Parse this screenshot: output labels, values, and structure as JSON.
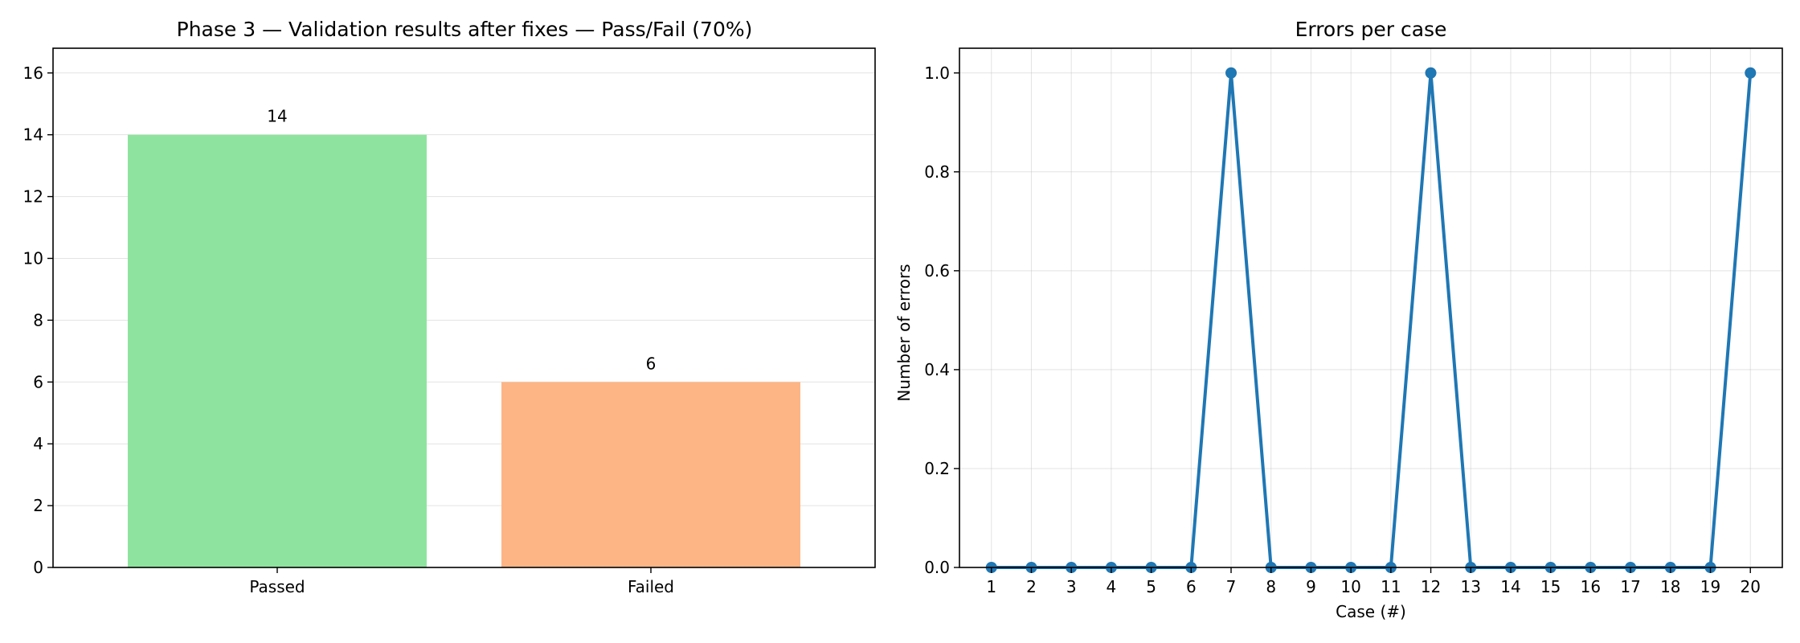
{
  "colors": {
    "passed": "#8ee49e",
    "failed": "#fdb585",
    "line": "#1f77b4",
    "grid": "#b0b0b0"
  },
  "chart_data": [
    {
      "type": "bar",
      "title": "Phase 3 — Validation results after fixes — Pass/Fail (70%)",
      "categories": [
        "Passed",
        "Failed"
      ],
      "values": [
        14,
        6
      ],
      "data_labels": [
        "14",
        "6"
      ],
      "xlabel": "",
      "ylabel": "",
      "ylim": [
        0,
        16.8
      ],
      "yticks": [
        0,
        2,
        4,
        6,
        8,
        10,
        12,
        14,
        16
      ],
      "grid": "y",
      "legend": "none"
    },
    {
      "type": "line",
      "title": "Errors per case",
      "x": [
        1,
        2,
        3,
        4,
        5,
        6,
        7,
        8,
        9,
        10,
        11,
        12,
        13,
        14,
        15,
        16,
        17,
        18,
        19,
        20
      ],
      "y": [
        0,
        0,
        0,
        0,
        0,
        0,
        1,
        0,
        0,
        0,
        0,
        1,
        0,
        0,
        0,
        0,
        0,
        0,
        0,
        1
      ],
      "xlabel": "Case (#)",
      "ylabel": "Number of errors",
      "xlim": [
        0.2,
        20.8
      ],
      "ylim": [
        0,
        1.05
      ],
      "yticks": [
        0.0,
        0.2,
        0.4,
        0.6,
        0.8,
        1.0
      ],
      "ytick_labels": [
        "0.0",
        "0.2",
        "0.4",
        "0.6",
        "0.8",
        "1.0"
      ],
      "grid": "both",
      "marker": "circle",
      "legend": "none"
    }
  ]
}
